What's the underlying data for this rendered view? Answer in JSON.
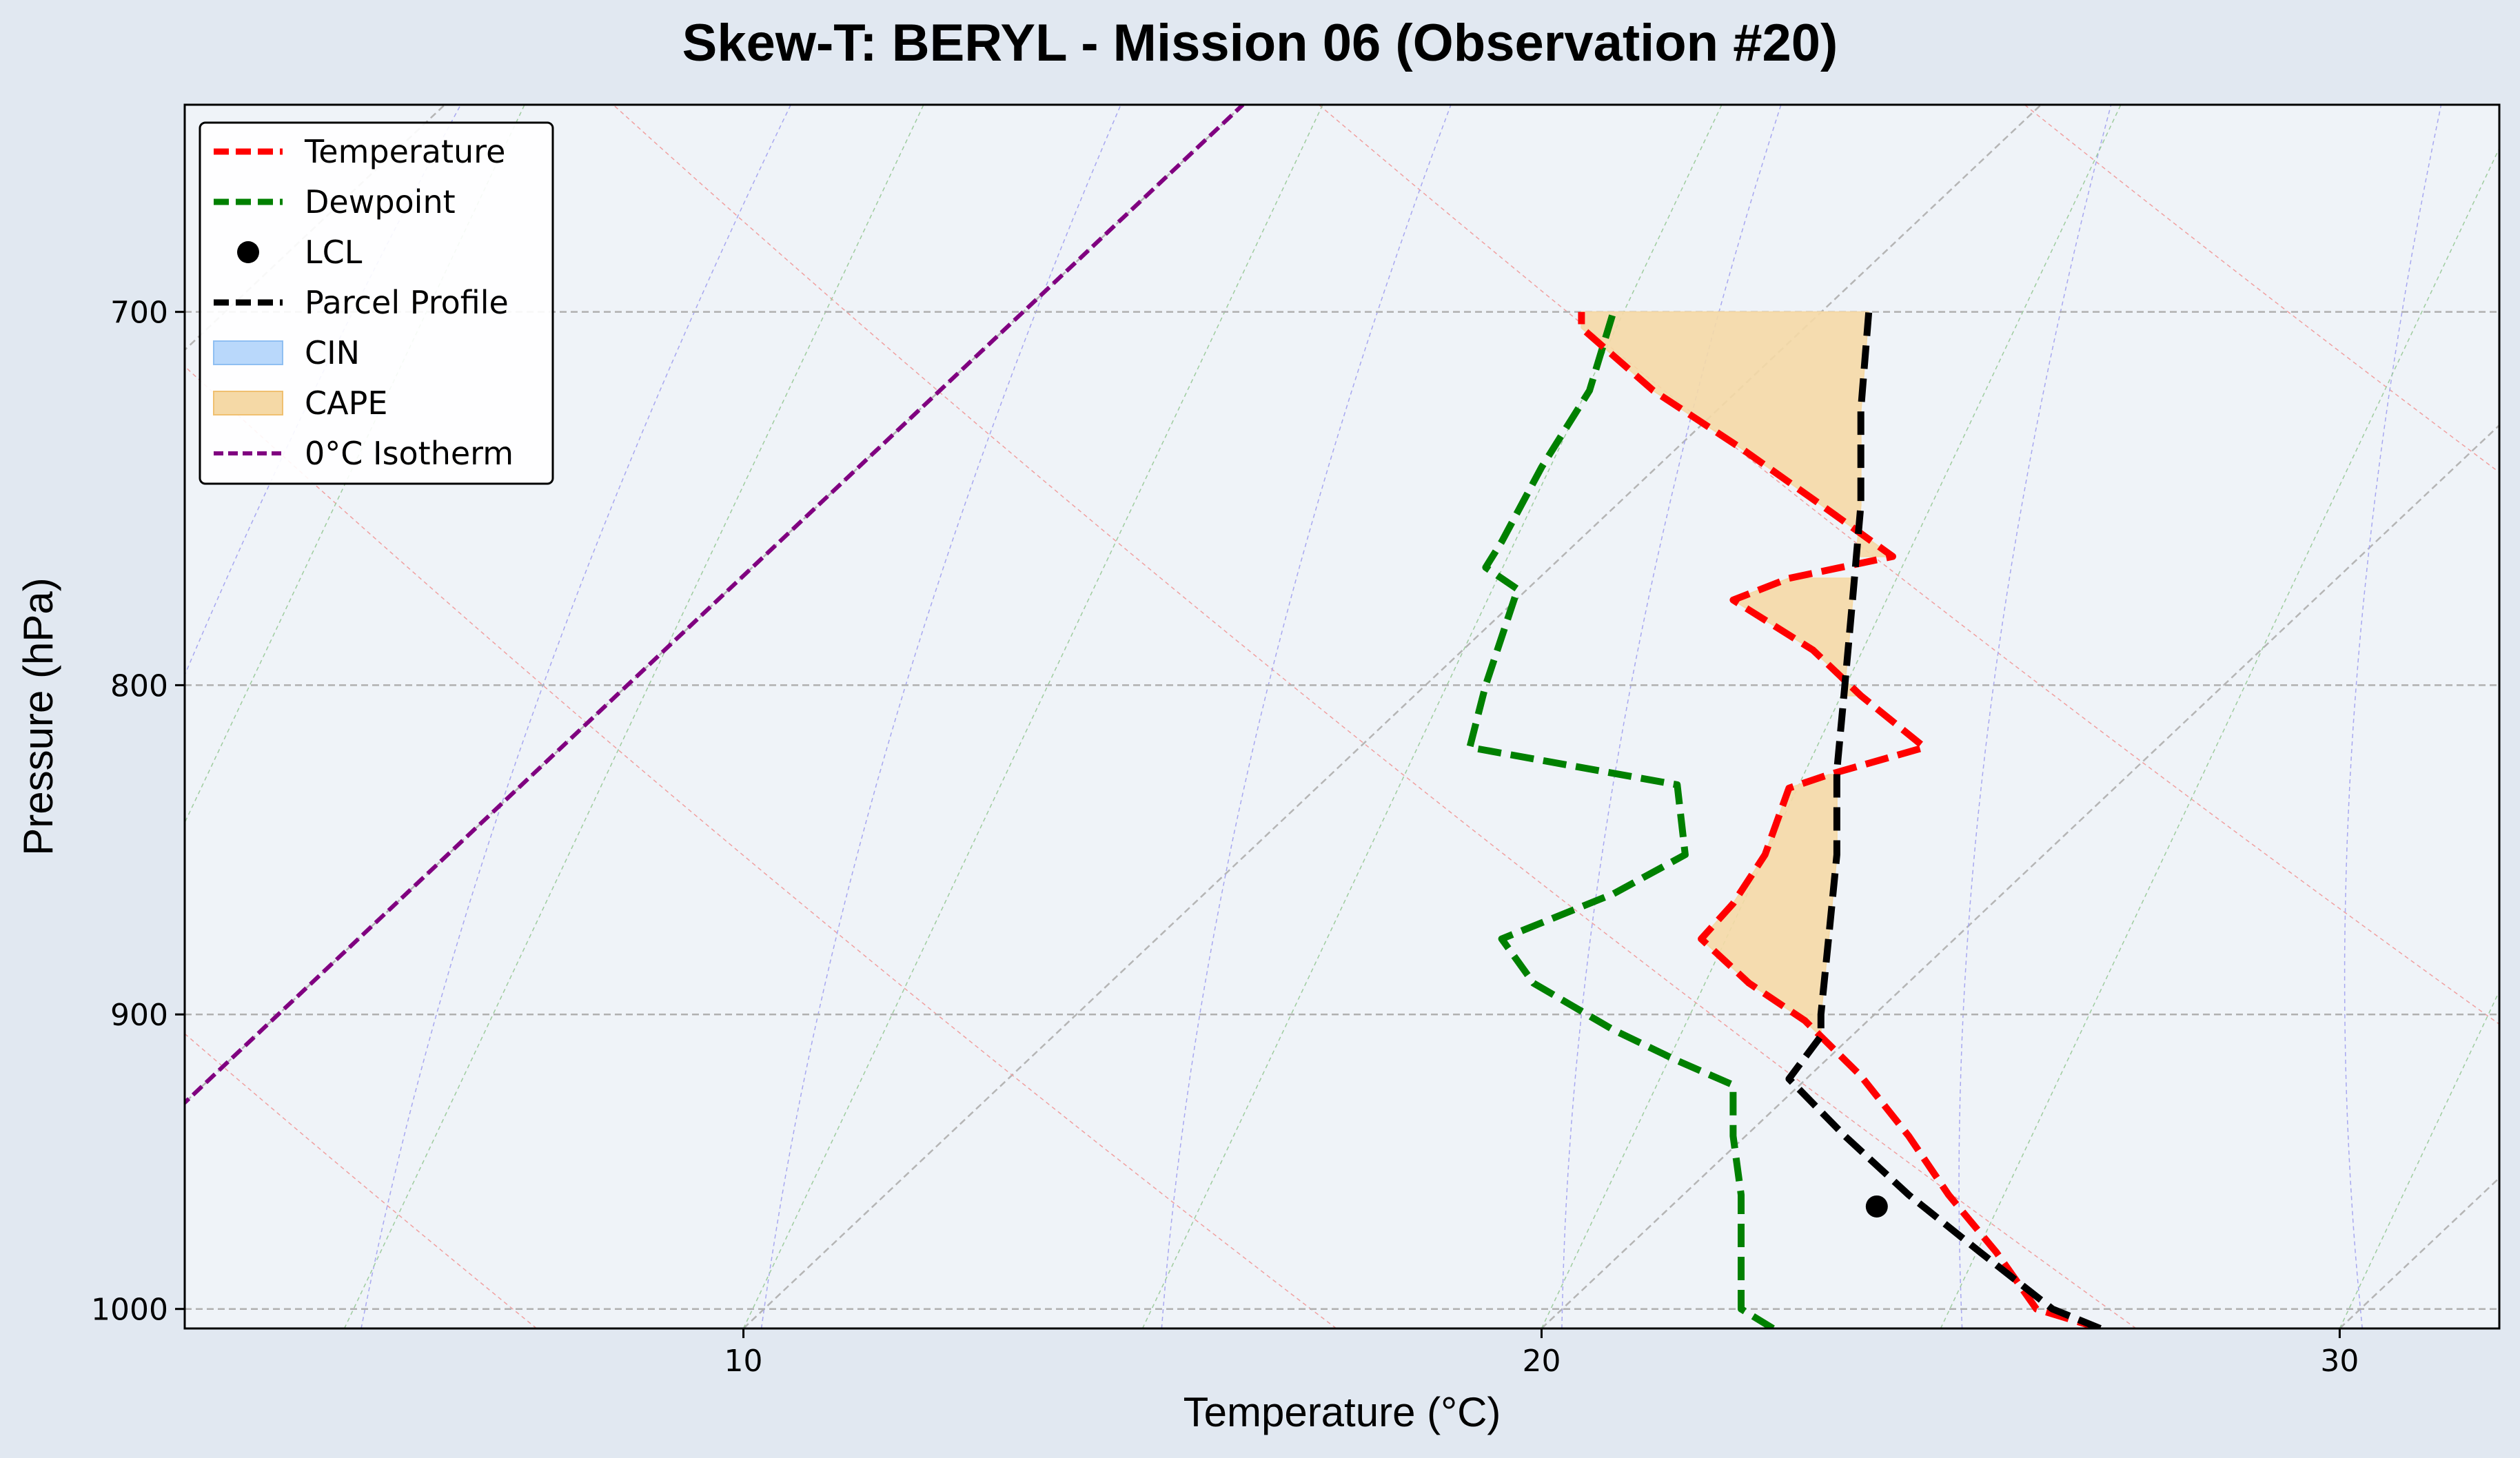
{
  "chart_data": {
    "type": "line",
    "title": "Skew-T: BERYL - Mission 06 (Observation #20)",
    "xlabel": "Temperature (°C)",
    "ylabel": "Pressure (hPa)",
    "xlim": [
      3.0,
      32.0
    ],
    "ylim": [
      1007,
      650
    ],
    "y_scale": "log",
    "x_ticks": [
      10,
      20,
      30
    ],
    "y_ticks": [
      700,
      800,
      900,
      1000
    ],
    "grid": true,
    "legend_position": "upper-left",
    "colors": {
      "temperature": "#ff0000",
      "dewpoint": "#008000",
      "parcel": "#000000",
      "cin": "#b9d8fb",
      "cape": "#f5d9a6",
      "isotherm": "#800080",
      "plot_bg": "#eff3f8"
    },
    "series": [
      {
        "name": "Temperature",
        "points": [
          [
            27.0,
            1007
          ],
          [
            26.2,
            1000
          ],
          [
            25.7,
            980
          ],
          [
            25.1,
            960
          ],
          [
            24.6,
            940
          ],
          [
            24.0,
            920
          ],
          [
            23.3,
            902
          ],
          [
            22.6,
            890
          ],
          [
            22.0,
            876
          ],
          [
            22.4,
            865
          ],
          [
            22.8,
            850
          ],
          [
            23.1,
            830
          ],
          [
            23.6,
            826
          ],
          [
            24.8,
            818
          ],
          [
            24.0,
            803
          ],
          [
            23.4,
            790
          ],
          [
            22.4,
            776
          ],
          [
            23.1,
            770
          ],
          [
            24.4,
            764
          ],
          [
            23.5,
            750
          ],
          [
            22.5,
            735
          ],
          [
            21.4,
            720
          ],
          [
            20.5,
            704
          ],
          [
            20.5,
            700
          ]
        ]
      },
      {
        "name": "Dewpoint",
        "points": [
          [
            22.9,
            1007
          ],
          [
            22.5,
            1000
          ],
          [
            22.5,
            980
          ],
          [
            22.5,
            960
          ],
          [
            22.4,
            940
          ],
          [
            22.4,
            923
          ],
          [
            21.7,
            915
          ],
          [
            20.9,
            905
          ],
          [
            19.9,
            890
          ],
          [
            19.5,
            876
          ],
          [
            20.9,
            862
          ],
          [
            21.8,
            850
          ],
          [
            21.7,
            829
          ],
          [
            19.1,
            818
          ],
          [
            19.3,
            800
          ],
          [
            19.7,
            773
          ],
          [
            19.3,
            767
          ],
          [
            19.5,
            760
          ],
          [
            20.0,
            740
          ],
          [
            20.6,
            720
          ],
          [
            20.9,
            700
          ]
        ]
      },
      {
        "name": "Parcel Profile",
        "points": [
          [
            27.0,
            1007
          ],
          [
            26.4,
            1000
          ],
          [
            25.5,
            980
          ],
          [
            24.6,
            960
          ],
          [
            23.8,
            940
          ],
          [
            23.1,
            921
          ],
          [
            23.5,
            907
          ],
          [
            23.5,
            900
          ],
          [
            23.6,
            875
          ],
          [
            23.7,
            850
          ],
          [
            23.7,
            825
          ],
          [
            23.8,
            800
          ],
          [
            23.9,
            775
          ],
          [
            24.0,
            750
          ],
          [
            24.0,
            725
          ],
          [
            24.1,
            700
          ]
        ]
      }
    ],
    "lcl": {
      "name": "LCL",
      "temperature": 24.2,
      "pressure": 964
    },
    "isotherm_0c": {
      "name": "0°C Isotherm"
    },
    "shaded": [
      {
        "name": "CIN",
        "regions": []
      },
      {
        "name": "CAPE",
        "regions": [
          [
            907,
            826
          ],
          [
            803,
            770
          ],
          [
            764,
            700
          ]
        ]
      }
    ],
    "legend": [
      "Temperature",
      "Dewpoint",
      "LCL",
      "Parcel Profile",
      "CIN",
      "CAPE",
      "0°C Isotherm"
    ]
  }
}
